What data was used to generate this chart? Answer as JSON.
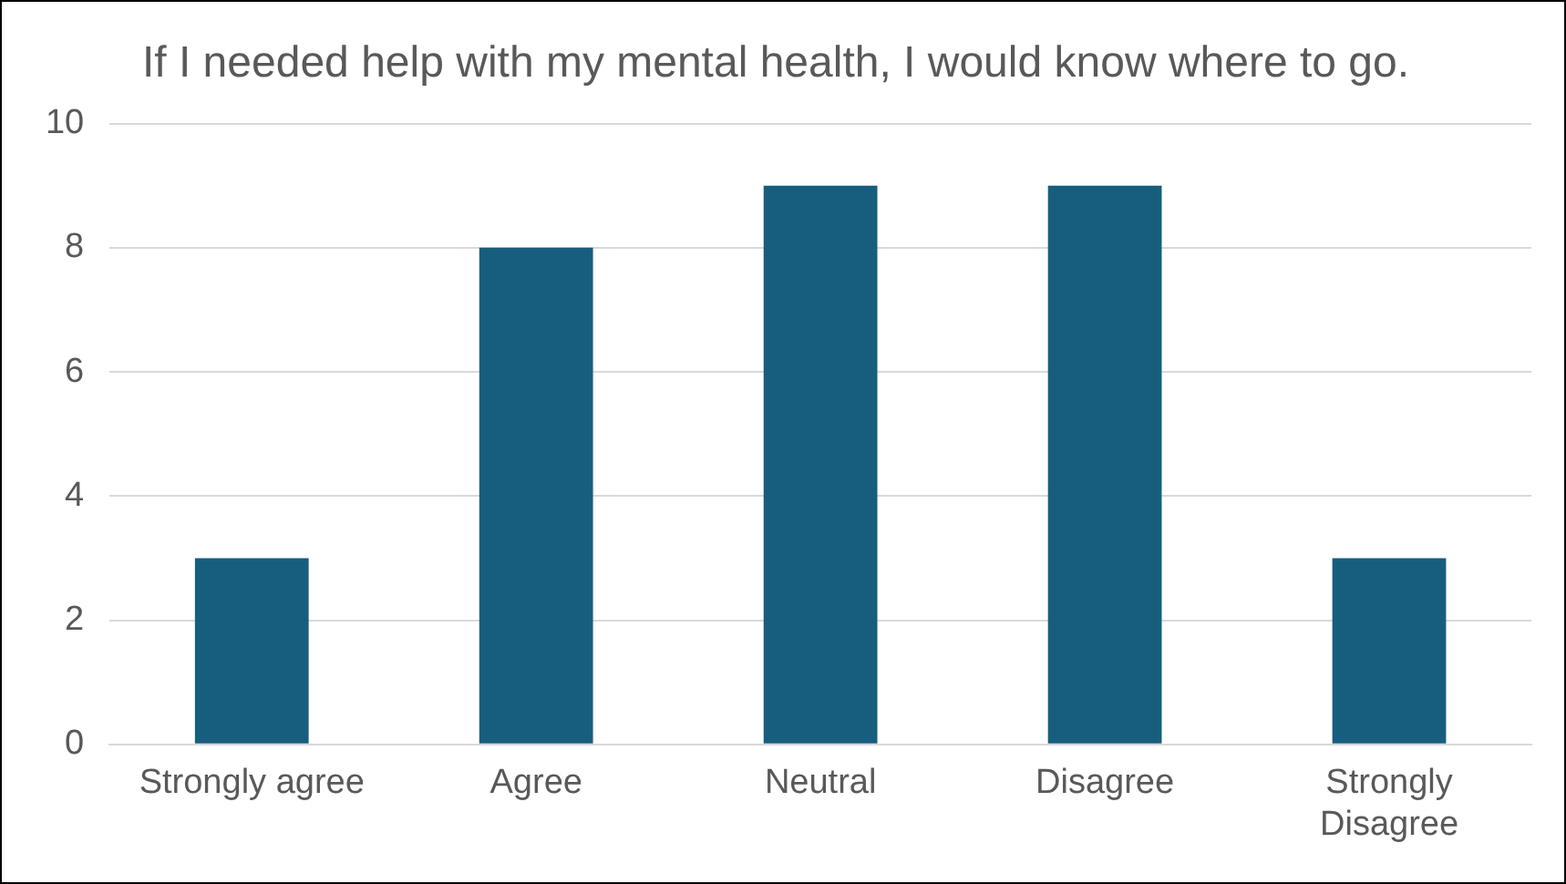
{
  "chart_data": {
    "type": "bar",
    "title": "If I needed help with my mental health, I would know where to go.",
    "categories": [
      "Strongly agree",
      "Agree",
      "Neutral",
      "Disagree",
      "Strongly Disagree"
    ],
    "values": [
      3,
      8,
      9,
      9,
      3
    ],
    "color": "#175e7e",
    "ylim": [
      0,
      10
    ],
    "yticks": [
      0,
      2,
      4,
      6,
      8,
      10
    ],
    "grid": "y"
  }
}
